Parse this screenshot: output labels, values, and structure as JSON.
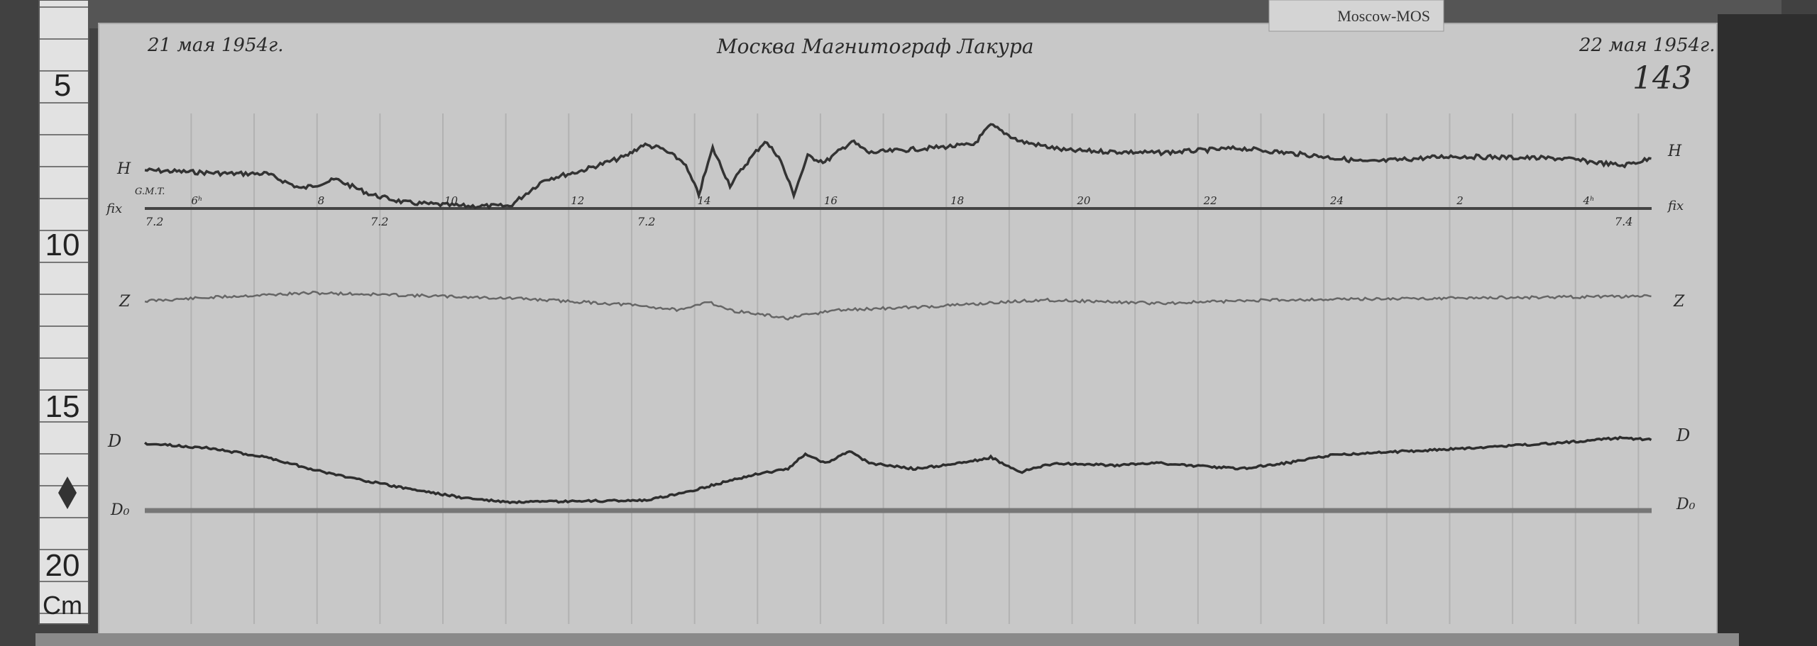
{
  "label_card": {
    "text": "Moscow-MOS"
  },
  "sheet": {
    "date_start": "21 мая 1954г.",
    "date_end": "22 мая 1954г.",
    "title": "Москва  Магнитограф  Лакура",
    "sheet_number": "143",
    "time_zone_label": "G.M.T.",
    "hour_labels": [
      "6ʰ",
      "8",
      "10",
      "12",
      "14",
      "16",
      "18",
      "20",
      "22",
      "24",
      "2",
      "4ʰ"
    ],
    "scale_marks": [
      "7.2",
      "7.2",
      "7.2",
      "7.4"
    ],
    "trace_labels": {
      "h_left": "H",
      "h_right": "H",
      "fix_left": "fix",
      "fix_right": "fix",
      "z_left": "Z",
      "z_right": "Z",
      "d_left": "D",
      "d_right": "D",
      "d0_left": "D₀",
      "d0_right": "D₀"
    }
  },
  "ruler": {
    "marks": [
      "5",
      "10",
      "15",
      "20"
    ],
    "unit": "Cm"
  },
  "colors": {
    "paper": "#c9c9c9",
    "ink": "#3a3a3a",
    "background": "#3a3a3a"
  }
}
